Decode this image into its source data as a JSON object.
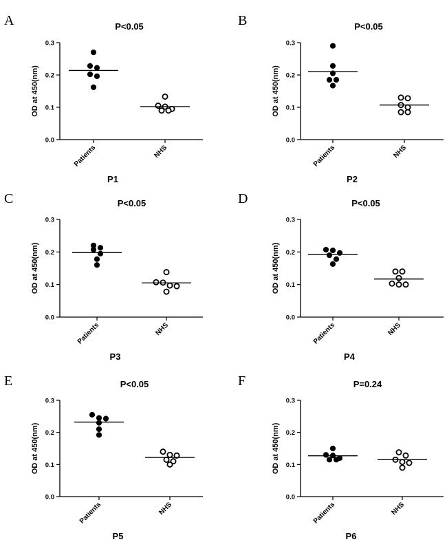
{
  "chart_data": [
    {
      "type": "scatter",
      "panel_letter": "A",
      "title": "P1",
      "subtitle": "P<0.05",
      "ylabel": "OD at 450(nm)",
      "ylim": [
        0,
        0.3
      ],
      "yticks": [
        "0.0",
        "0.1",
        "0.2",
        "0.3"
      ],
      "categories": [
        "Patients",
        "NHS"
      ],
      "series": [
        {
          "values": [
            0.27,
            0.228,
            0.222,
            0.202,
            0.196,
            0.162
          ],
          "mean": 0.214,
          "filled": true
        },
        {
          "values": [
            0.133,
            0.105,
            0.102,
            0.095,
            0.09,
            0.09
          ],
          "mean": 0.102,
          "filled": false
        }
      ]
    },
    {
      "type": "scatter",
      "panel_letter": "B",
      "title": "P2",
      "subtitle": "P<0.05",
      "ylabel": "OD at 450(nm)",
      "ylim": [
        0,
        0.3
      ],
      "yticks": [
        "0.0",
        "0.1",
        "0.2",
        "0.3"
      ],
      "categories": [
        "Patients",
        "NHS"
      ],
      "series": [
        {
          "values": [
            0.29,
            0.228,
            0.205,
            0.185,
            0.185,
            0.167
          ],
          "mean": 0.21,
          "filled": true
        },
        {
          "values": [
            0.13,
            0.128,
            0.107,
            0.1,
            0.085,
            0.085
          ],
          "mean": 0.107,
          "filled": false
        }
      ]
    },
    {
      "type": "scatter",
      "panel_letter": "C",
      "title": "P3",
      "subtitle": "P<0.05",
      "ylabel": "OD at 450(nm)",
      "ylim": [
        0,
        0.3
      ],
      "yticks": [
        "0.0",
        "0.1",
        "0.2",
        "0.3"
      ],
      "categories": [
        "Patients",
        "NHS"
      ],
      "series": [
        {
          "values": [
            0.22,
            0.213,
            0.207,
            0.195,
            0.178,
            0.16
          ],
          "mean": 0.198,
          "filled": true
        },
        {
          "values": [
            0.138,
            0.107,
            0.106,
            0.097,
            0.095,
            0.078
          ],
          "mean": 0.105,
          "filled": false
        }
      ]
    },
    {
      "type": "scatter",
      "panel_letter": "D",
      "title": "P4",
      "subtitle": "P<0.05",
      "ylabel": "OD at 450(nm)",
      "ylim": [
        0,
        0.3
      ],
      "yticks": [
        "0.0",
        "0.1",
        "0.2",
        "0.3"
      ],
      "categories": [
        "Patients",
        "NHS"
      ],
      "series": [
        {
          "values": [
            0.207,
            0.205,
            0.197,
            0.19,
            0.178,
            0.163
          ],
          "mean": 0.193,
          "filled": true
        },
        {
          "values": [
            0.14,
            0.14,
            0.12,
            0.103,
            0.1,
            0.1
          ],
          "mean": 0.117,
          "filled": false
        }
      ]
    },
    {
      "type": "scatter",
      "panel_letter": "E",
      "title": "P5",
      "subtitle": "P<0.05",
      "ylabel": "OD at 450(nm)",
      "ylim": [
        0,
        0.3
      ],
      "yticks": [
        "0.0",
        "0.1",
        "0.2",
        "0.3"
      ],
      "categories": [
        "Patients",
        "NHS"
      ],
      "series": [
        {
          "values": [
            0.255,
            0.245,
            0.243,
            0.23,
            0.21,
            0.192
          ],
          "mean": 0.232,
          "filled": true
        },
        {
          "values": [
            0.14,
            0.13,
            0.128,
            0.115,
            0.11,
            0.1
          ],
          "mean": 0.122,
          "filled": false
        }
      ]
    },
    {
      "type": "scatter",
      "panel_letter": "F",
      "title": "P6",
      "subtitle": "P=0.24",
      "ylabel": "OD at 450(nm)",
      "ylim": [
        0,
        0.3
      ],
      "yticks": [
        "0.0",
        "0.1",
        "0.2",
        "0.3"
      ],
      "categories": [
        "Patients",
        "NHS"
      ],
      "series": [
        {
          "values": [
            0.15,
            0.13,
            0.128,
            0.12,
            0.115,
            0.115
          ],
          "mean": 0.127,
          "filled": true
        },
        {
          "values": [
            0.138,
            0.128,
            0.115,
            0.108,
            0.105,
            0.09
          ],
          "mean": 0.115,
          "filled": false
        }
      ]
    }
  ]
}
